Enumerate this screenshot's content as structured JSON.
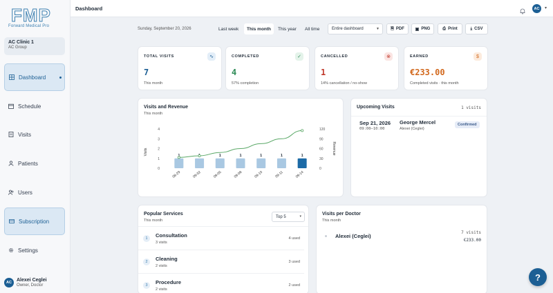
{
  "brand": {
    "logo_text": "FMP",
    "tagline": "Forward Medical Pro"
  },
  "clinic": {
    "name": "AC Clinic 1",
    "group": "AC Group"
  },
  "sidebar": {
    "items": [
      {
        "label": "Dashboard",
        "icon": "grid-icon",
        "active": true
      },
      {
        "label": "Schedule",
        "icon": "calendar-icon"
      },
      {
        "label": "Visits",
        "icon": "document-icon"
      },
      {
        "label": "Patients",
        "icon": "person-icon"
      },
      {
        "label": "Users",
        "icon": "users-icon"
      },
      {
        "label": "Subscription",
        "icon": "card-icon",
        "highlighted": true
      },
      {
        "label": "Settings",
        "icon": "gear-icon"
      }
    ]
  },
  "user": {
    "initials": "AC",
    "name": "Alexei Ceglei",
    "role": "Owner, Doctor"
  },
  "topbar": {
    "title": "Dashboard",
    "avatar_initials": "AC"
  },
  "filters": {
    "date": "Sunday, September 20, 2026",
    "ranges": [
      "Last week",
      "This month",
      "This year",
      "All time"
    ],
    "active_range": "This month",
    "dashboard_select": "Entire dashboard",
    "export_buttons": [
      "PDF",
      "PNG",
      "Print",
      "CSV"
    ]
  },
  "kpis": [
    {
      "label": "TOTAL VISITS",
      "value": "7",
      "sub": "This month",
      "color": "#1c5f94",
      "icon": "activity-icon"
    },
    {
      "label": "COMPLETED",
      "value": "4",
      "sub": "57% completion",
      "color": "#2e8b57",
      "icon": "check-circle-icon"
    },
    {
      "label": "CANCELLED",
      "value": "1",
      "sub": "14% cancellation / no-show",
      "color": "#c0392b",
      "icon": "x-circle-icon"
    },
    {
      "label": "EARNED",
      "value": "€233.00",
      "sub": "Completed visits · this month",
      "color": "#d2691e",
      "icon": "dollar-icon"
    }
  ],
  "revenue_card": {
    "title": "Visits and Revenue",
    "subtitle": "This month"
  },
  "chart_data": {
    "type": "bar",
    "categories": [
      "08-29",
      "09-02",
      "09-05",
      "09-08",
      "09-10",
      "09-11",
      "09-14"
    ],
    "series": [
      {
        "name": "Visits",
        "type": "bar",
        "values": [
          1,
          1,
          1,
          1,
          1,
          1,
          1
        ],
        "axis": "left"
      },
      {
        "name": "Revenue",
        "type": "line",
        "values": [
          33,
          38,
          48,
          60,
          75,
          90,
          115
        ],
        "axis": "right"
      }
    ],
    "data_labels": [
      "1",
      "1",
      "1",
      "1",
      "1",
      "1",
      "1"
    ],
    "ylabel": "Visits",
    "ylabel_right": "Revenue",
    "ylim": [
      0,
      4
    ],
    "yticks": [
      0,
      1,
      2,
      3,
      4
    ],
    "ylim_right": [
      0,
      120
    ],
    "yticks_right": [
      0,
      30,
      60,
      90,
      120
    ],
    "highlight_index": 6,
    "colors": {
      "bar": "#a9c8e2",
      "bar_highlight": "#1c6aa6",
      "line": "#5aa867"
    },
    "grid": false
  },
  "upcoming": {
    "title": "Upcoming Visits",
    "count": "1 visits",
    "items": [
      {
        "date": "Sep 21, 2026",
        "time": "09:00–10:00",
        "patient": "George Mercel",
        "doctor": "Alexei (Ceglei)",
        "status": "Confirmed"
      }
    ]
  },
  "services": {
    "title": "Popular Services",
    "subtitle": "This month",
    "select": "Top 5",
    "items": [
      {
        "rank": "1",
        "name": "Consultation",
        "visits": "3 visits",
        "used": "4 used"
      },
      {
        "rank": "2",
        "name": "Cleaning",
        "visits": "2 visits",
        "used": "3 used"
      },
      {
        "rank": "3",
        "name": "Procedure",
        "visits": "2 visits",
        "used": "2 used"
      }
    ]
  },
  "doctors": {
    "title": "Visits per Doctor",
    "subtitle": "This month",
    "items": [
      {
        "name": "Alexei (Ceglei)",
        "visits": "7 visits",
        "earned": "€233.00"
      }
    ]
  },
  "help": {
    "label": "?"
  }
}
